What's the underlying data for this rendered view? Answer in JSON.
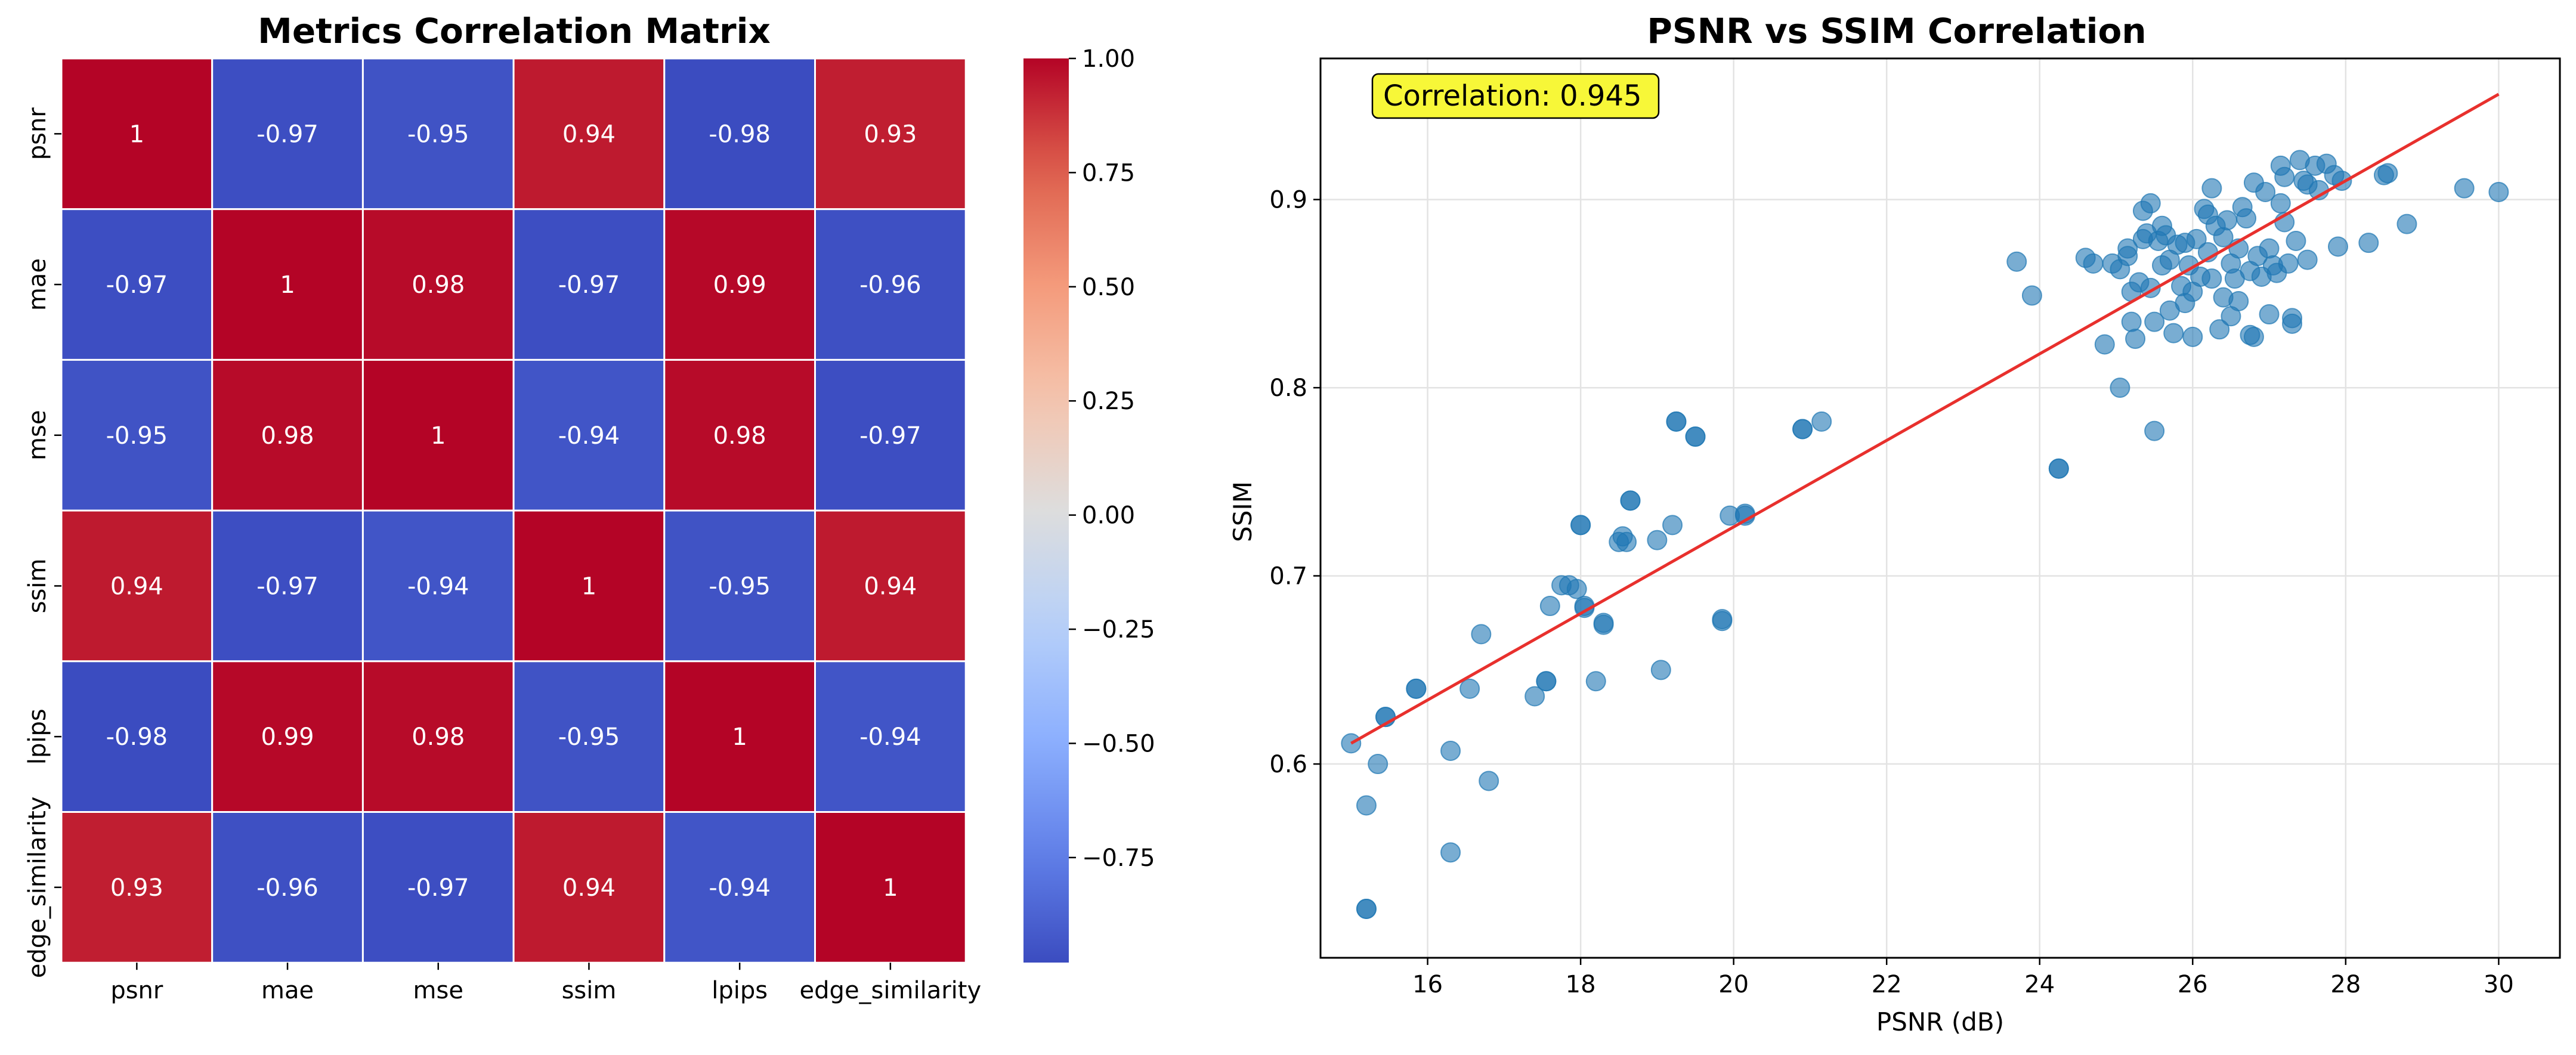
{
  "chart_data": [
    {
      "type": "heatmap",
      "title": "Metrics Correlation Matrix",
      "rows": [
        "psnr",
        "mae",
        "mse",
        "ssim",
        "lpips",
        "edge_similarity"
      ],
      "cols": [
        "psnr",
        "mae",
        "mse",
        "ssim",
        "lpips",
        "edge_similarity"
      ],
      "values": [
        [
          1,
          -0.97,
          -0.95,
          0.94,
          -0.98,
          0.93
        ],
        [
          -0.97,
          1,
          0.98,
          -0.97,
          0.99,
          -0.96
        ],
        [
          -0.95,
          0.98,
          1,
          -0.94,
          0.98,
          -0.97
        ],
        [
          0.94,
          -0.97,
          -0.94,
          1,
          -0.95,
          0.94
        ],
        [
          -0.98,
          0.99,
          0.98,
          -0.95,
          1,
          -0.94
        ],
        [
          0.93,
          -0.96,
          -0.97,
          0.94,
          -0.94,
          1
        ]
      ],
      "annotations": [
        [
          "1",
          "-0.97",
          "-0.95",
          "0.94",
          "-0.98",
          "0.93"
        ],
        [
          "-0.97",
          "1",
          "0.98",
          "-0.97",
          "0.99",
          "-0.96"
        ],
        [
          "-0.95",
          "0.98",
          "1",
          "-0.94",
          "0.98",
          "-0.97"
        ],
        [
          "0.94",
          "-0.97",
          "-0.94",
          "1",
          "-0.95",
          "0.94"
        ],
        [
          "-0.98",
          "0.99",
          "0.98",
          "-0.95",
          "1",
          "-0.94"
        ],
        [
          "0.93",
          "-0.96",
          "-0.97",
          "0.94",
          "-0.94",
          "1"
        ]
      ],
      "colormap": "coolwarm",
      "vmin": -0.98,
      "vmax": 1.0,
      "colorbar_ticks": [
        1.0,
        0.75,
        0.5,
        0.25,
        0.0,
        -0.25,
        -0.5,
        -0.75
      ],
      "colorbar_tick_labels": [
        "1.00",
        "0.75",
        "0.50",
        "0.25",
        "0.00",
        "−0.25",
        "−0.50",
        "−0.75"
      ],
      "colors": {
        "high": "#b40426",
        "mid": "#dddddd",
        "low": "#3b4cc0"
      }
    },
    {
      "type": "scatter",
      "title": "PSNR vs SSIM Correlation",
      "xlabel": "PSNR (dB)",
      "ylabel": "SSIM",
      "xlim": [
        14.6,
        30.8
      ],
      "ylim": [
        0.497,
        0.975
      ],
      "xticks": [
        16,
        18,
        20,
        22,
        24,
        26,
        28,
        30
      ],
      "yticks": [
        0.6,
        0.7,
        0.8,
        0.9
      ],
      "ytick_labels": [
        "0.6",
        "0.7",
        "0.8",
        "0.9"
      ],
      "grid": true,
      "point_color": "#1f77b4",
      "fit_line_color": "#e8302d",
      "fit_line": {
        "x": [
          15.0,
          30.0
        ],
        "y": [
          0.611,
          0.956
        ]
      },
      "annotation": "Correlation: 0.945",
      "annotation_bg": "#f7f738",
      "points": [
        [
          15.0,
          0.611
        ],
        [
          15.2,
          0.578
        ],
        [
          15.2,
          0.523
        ],
        [
          15.2,
          0.523
        ],
        [
          15.35,
          0.6
        ],
        [
          15.45,
          0.625
        ],
        [
          15.45,
          0.625
        ],
        [
          15.85,
          0.64
        ],
        [
          15.85,
          0.64
        ],
        [
          16.3,
          0.607
        ],
        [
          16.3,
          0.553
        ],
        [
          16.55,
          0.64
        ],
        [
          16.7,
          0.669
        ],
        [
          16.8,
          0.591
        ],
        [
          17.4,
          0.636
        ],
        [
          17.55,
          0.644
        ],
        [
          17.55,
          0.644
        ],
        [
          17.6,
          0.684
        ],
        [
          17.75,
          0.695
        ],
        [
          17.85,
          0.695
        ],
        [
          17.95,
          0.693
        ],
        [
          18.0,
          0.727
        ],
        [
          18.0,
          0.727
        ],
        [
          18.05,
          0.684
        ],
        [
          18.05,
          0.683
        ],
        [
          18.2,
          0.644
        ],
        [
          18.3,
          0.675
        ],
        [
          18.3,
          0.674
        ],
        [
          18.5,
          0.718
        ],
        [
          18.55,
          0.721
        ],
        [
          18.6,
          0.718
        ],
        [
          18.65,
          0.74
        ],
        [
          18.65,
          0.74
        ],
        [
          19.0,
          0.719
        ],
        [
          19.05,
          0.65
        ],
        [
          19.2,
          0.727
        ],
        [
          19.25,
          0.782
        ],
        [
          19.25,
          0.782
        ],
        [
          19.5,
          0.774
        ],
        [
          19.5,
          0.774
        ],
        [
          19.85,
          0.676
        ],
        [
          19.85,
          0.677
        ],
        [
          19.95,
          0.732
        ],
        [
          20.15,
          0.733
        ],
        [
          20.15,
          0.732
        ],
        [
          20.9,
          0.778
        ],
        [
          20.9,
          0.778
        ],
        [
          21.15,
          0.782
        ],
        [
          23.7,
          0.867
        ],
        [
          23.9,
          0.849
        ],
        [
          24.25,
          0.757
        ],
        [
          24.25,
          0.757
        ],
        [
          24.6,
          0.869
        ],
        [
          24.7,
          0.866
        ],
        [
          24.85,
          0.823
        ],
        [
          24.95,
          0.866
        ],
        [
          25.05,
          0.863
        ],
        [
          25.05,
          0.8
        ],
        [
          25.15,
          0.874
        ],
        [
          25.15,
          0.87
        ],
        [
          25.2,
          0.851
        ],
        [
          25.2,
          0.835
        ],
        [
          25.25,
          0.826
        ],
        [
          25.3,
          0.856
        ],
        [
          25.35,
          0.879
        ],
        [
          25.35,
          0.894
        ],
        [
          25.4,
          0.882
        ],
        [
          25.45,
          0.898
        ],
        [
          25.45,
          0.853
        ],
        [
          25.5,
          0.835
        ],
        [
          25.5,
          0.777
        ],
        [
          25.55,
          0.878
        ],
        [
          25.6,
          0.865
        ],
        [
          25.6,
          0.886
        ],
        [
          25.65,
          0.881
        ],
        [
          25.7,
          0.868
        ],
        [
          25.7,
          0.841
        ],
        [
          25.75,
          0.829
        ],
        [
          25.8,
          0.876
        ],
        [
          25.85,
          0.854
        ],
        [
          25.9,
          0.877
        ],
        [
          25.9,
          0.845
        ],
        [
          25.95,
          0.865
        ],
        [
          26.0,
          0.851
        ],
        [
          26.0,
          0.827
        ],
        [
          26.05,
          0.879
        ],
        [
          26.1,
          0.859
        ],
        [
          26.15,
          0.895
        ],
        [
          26.2,
          0.872
        ],
        [
          26.2,
          0.892
        ],
        [
          26.25,
          0.906
        ],
        [
          26.25,
          0.858
        ],
        [
          26.3,
          0.886
        ],
        [
          26.35,
          0.831
        ],
        [
          26.4,
          0.88
        ],
        [
          26.4,
          0.848
        ],
        [
          26.45,
          0.889
        ],
        [
          26.5,
          0.866
        ],
        [
          26.5,
          0.838
        ],
        [
          26.55,
          0.858
        ],
        [
          26.6,
          0.874
        ],
        [
          26.6,
          0.846
        ],
        [
          26.65,
          0.896
        ],
        [
          26.7,
          0.89
        ],
        [
          26.75,
          0.862
        ],
        [
          26.75,
          0.828
        ],
        [
          26.8,
          0.909
        ],
        [
          26.8,
          0.827
        ],
        [
          26.85,
          0.87
        ],
        [
          26.9,
          0.859
        ],
        [
          26.95,
          0.904
        ],
        [
          27.0,
          0.874
        ],
        [
          27.0,
          0.839
        ],
        [
          27.05,
          0.865
        ],
        [
          27.1,
          0.861
        ],
        [
          27.15,
          0.918
        ],
        [
          27.15,
          0.898
        ],
        [
          27.2,
          0.912
        ],
        [
          27.2,
          0.888
        ],
        [
          27.25,
          0.866
        ],
        [
          27.3,
          0.837
        ],
        [
          27.3,
          0.834
        ],
        [
          27.35,
          0.878
        ],
        [
          27.4,
          0.921
        ],
        [
          27.45,
          0.91
        ],
        [
          27.5,
          0.908
        ],
        [
          27.5,
          0.868
        ],
        [
          27.6,
          0.918
        ],
        [
          27.65,
          0.905
        ],
        [
          27.75,
          0.919
        ],
        [
          27.85,
          0.913
        ],
        [
          27.9,
          0.875
        ],
        [
          27.95,
          0.91
        ],
        [
          28.3,
          0.877
        ],
        [
          28.5,
          0.913
        ],
        [
          28.55,
          0.914
        ],
        [
          28.8,
          0.887
        ],
        [
          29.55,
          0.906
        ],
        [
          30.0,
          0.904
        ]
      ]
    }
  ]
}
